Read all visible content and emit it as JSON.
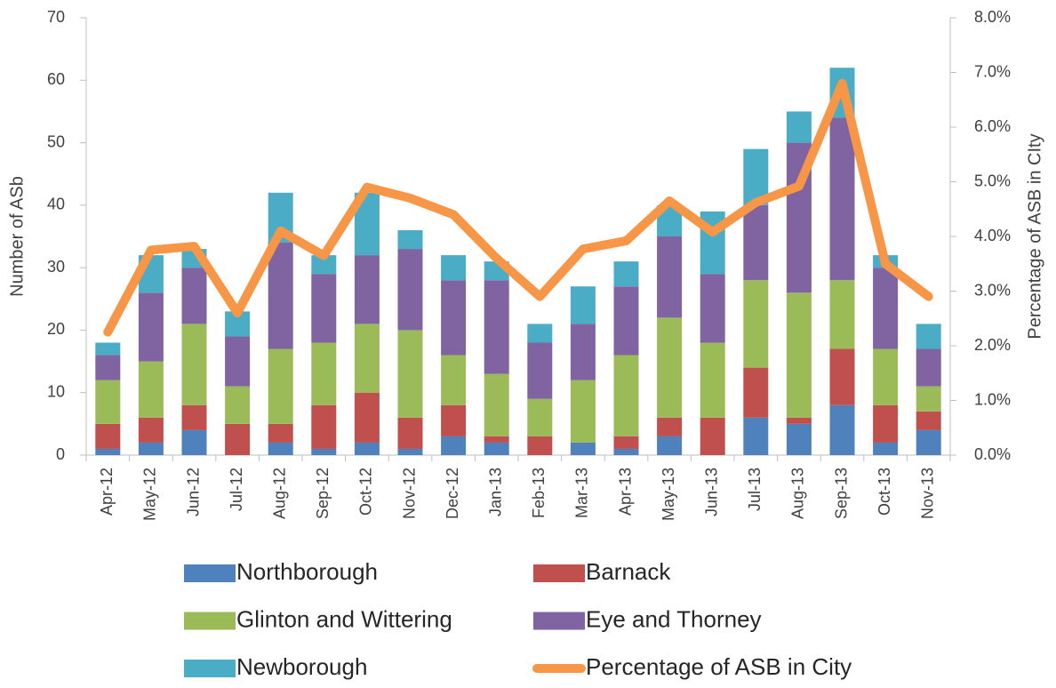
{
  "chart_data": {
    "type": "bar",
    "stacked": true,
    "y_label": "Number of ASb",
    "y2_label": "Percentage of ASB in CIty",
    "categories": [
      "Apr-12",
      "May-12",
      "Jun-12",
      "Jul-12",
      "Aug-12",
      "Sep-12",
      "Oct-12",
      "Nov-12",
      "Dec-12",
      "Jan-13",
      "Feb-13",
      "Mar-13",
      "Apr-13",
      "May-13",
      "Jun-13",
      "Jul-13",
      "Aug-13",
      "Sep-13",
      "Oct-13",
      "Nov-13"
    ],
    "series": [
      {
        "name": "Northborough",
        "color": "#4f81bd",
        "values": [
          1,
          2,
          4,
          0,
          2,
          1,
          2,
          1,
          3,
          2,
          0,
          2,
          1,
          3,
          0,
          6,
          5,
          8,
          2,
          4
        ]
      },
      {
        "name": "Barnack",
        "color": "#c0504d",
        "values": [
          4,
          4,
          4,
          5,
          3,
          7,
          8,
          5,
          5,
          1,
          3,
          0,
          2,
          3,
          6,
          8,
          1,
          9,
          6,
          3
        ]
      },
      {
        "name": "Glinton and Wittering",
        "color": "#9bbb59",
        "values": [
          7,
          9,
          13,
          6,
          12,
          10,
          11,
          14,
          8,
          10,
          6,
          10,
          13,
          16,
          12,
          14,
          20,
          11,
          9,
          4
        ]
      },
      {
        "name": "Eye and Thorney",
        "color": "#8064a2",
        "values": [
          4,
          11,
          9,
          8,
          17,
          11,
          11,
          13,
          12,
          15,
          9,
          9,
          11,
          13,
          11,
          12,
          24,
          26,
          13,
          6
        ]
      },
      {
        "name": "Newborough",
        "color": "#4bacc6",
        "values": [
          2,
          6,
          3,
          4,
          8,
          3,
          10,
          3,
          4,
          3,
          3,
          6,
          4,
          5,
          10,
          9,
          5,
          8,
          2,
          4
        ]
      },
      {
        "name": "Percentage of ASB in City",
        "color": "#f79646",
        "type": "line",
        "axis": "y2",
        "values": [
          2.25,
          3.75,
          3.82,
          2.6,
          4.1,
          3.65,
          4.9,
          4.7,
          4.4,
          3.6,
          2.9,
          3.77,
          3.92,
          4.65,
          4.08,
          4.62,
          4.92,
          6.8,
          3.5,
          2.9
        ]
      }
    ],
    "ylim": [
      0,
      70
    ],
    "yticks": [
      0,
      10,
      20,
      30,
      40,
      50,
      60,
      70
    ],
    "y2lim": [
      0,
      8
    ],
    "y2ticks": [
      {
        "value": 0,
        "label": "0.0%"
      },
      {
        "value": 1,
        "label": "1.0%"
      },
      {
        "value": 2,
        "label": "2.0%"
      },
      {
        "value": 3,
        "label": "3.0%"
      },
      {
        "value": 4,
        "label": "4.0%"
      },
      {
        "value": 5,
        "label": "5.0%"
      },
      {
        "value": 6,
        "label": "6.0%"
      },
      {
        "value": 7,
        "label": "7.0%"
      },
      {
        "value": 8,
        "label": "8.0%"
      }
    ],
    "grid": false
  }
}
